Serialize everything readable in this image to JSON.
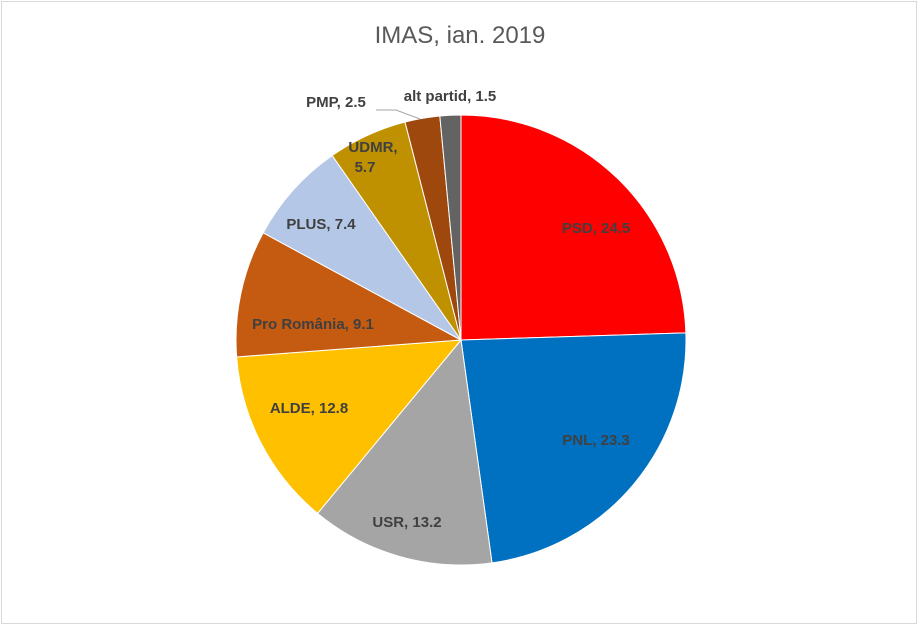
{
  "chart_data": {
    "type": "pie",
    "title": "IMAS, ian. 2019",
    "start_angle": "12 o'clock, clockwise",
    "slices": [
      {
        "label": "PSD",
        "value": 24.5,
        "color": "#FF0000"
      },
      {
        "label": "PNL",
        "value": 23.3,
        "color": "#0070C0"
      },
      {
        "label": "USR",
        "value": 13.2,
        "color": "#A5A5A5"
      },
      {
        "label": "ALDE",
        "value": 12.8,
        "color": "#FFC000"
      },
      {
        "label": "Pro România",
        "value": 9.1,
        "color": "#C55A11"
      },
      {
        "label": "PLUS",
        "value": 7.4,
        "color": "#B4C7E7"
      },
      {
        "label": "UDMR",
        "value": 5.7,
        "color": "#BF9000"
      },
      {
        "label": "PMP",
        "value": 2.5,
        "color": "#9E480E"
      },
      {
        "label": "alt partid",
        "value": 1.5,
        "color": "#636363"
      }
    ]
  }
}
